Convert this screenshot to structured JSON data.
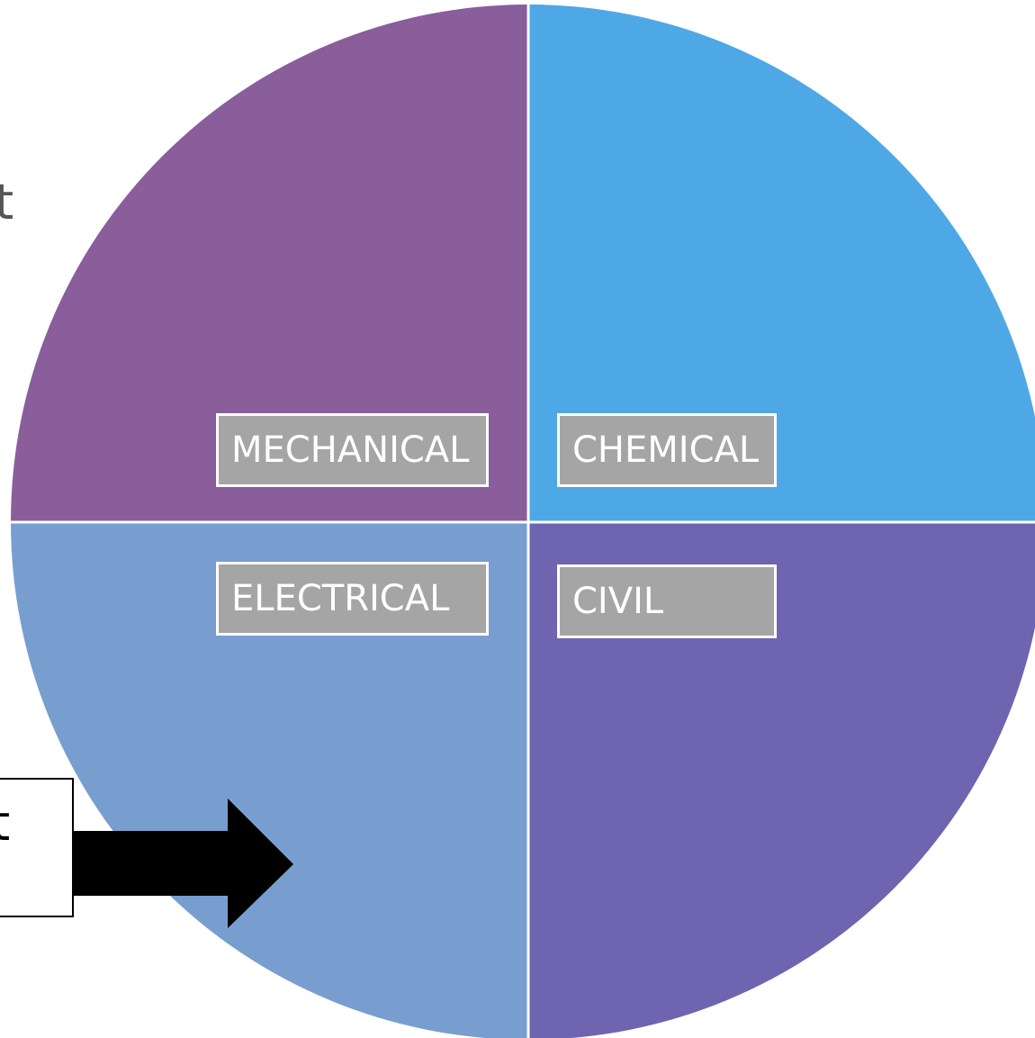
{
  "diagram": {
    "quadrants": [
      {
        "id": "mechanical",
        "label": "MECHANICAL",
        "color": "#8a5d9b"
      },
      {
        "id": "chemical",
        "label": "CHEMICAL",
        "color": "#4ea8e6"
      },
      {
        "id": "electrical",
        "label": "ELECTRICAL",
        "color": "#779ecf"
      },
      {
        "id": "civil",
        "label": "CIVIL",
        "color": "#6e64b0"
      }
    ],
    "label_box_color": "#a5a5a5",
    "divider_color": "#ffffff",
    "arrow_color": "#000000"
  },
  "partial_text": {
    "top_left": "t",
    "callout": "t"
  }
}
